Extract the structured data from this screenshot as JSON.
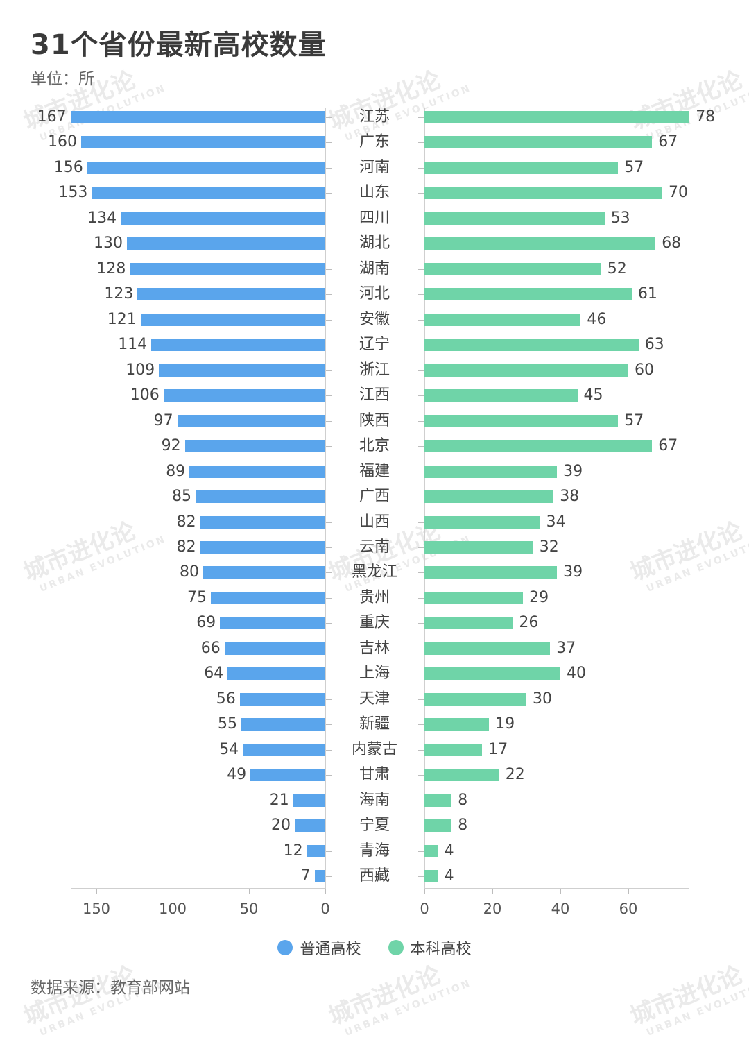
{
  "header": {
    "title": "31个省份最新高校数量",
    "unit": "单位：所"
  },
  "footer": {
    "source": "数据来源：教育部网站"
  },
  "watermark": {
    "text": "城市进化论",
    "subtext": "URBAN EVOLUTION"
  },
  "legend": [
    {
      "label": "普通高校",
      "color": "#5aa5ec"
    },
    {
      "label": "本科高校",
      "color": "#6fd4a8"
    }
  ],
  "chart_data": {
    "type": "bar",
    "orientation": "horizontal-butterfly",
    "title": "31个省份最新高校数量",
    "subtitle": "单位：所",
    "source": "数据来源：教育部网站",
    "categories": [
      "江苏",
      "广东",
      "河南",
      "山东",
      "四川",
      "湖北",
      "湖南",
      "河北",
      "安徽",
      "辽宁",
      "浙江",
      "江西",
      "陕西",
      "北京",
      "福建",
      "广西",
      "山西",
      "云南",
      "黑龙江",
      "贵州",
      "重庆",
      "吉林",
      "上海",
      "天津",
      "新疆",
      "内蒙古",
      "甘肃",
      "海南",
      "宁夏",
      "青海",
      "西藏"
    ],
    "series": [
      {
        "name": "普通高校",
        "color": "#5aa5ec",
        "side": "left",
        "values": [
          167,
          160,
          156,
          153,
          134,
          130,
          128,
          123,
          121,
          114,
          109,
          106,
          97,
          92,
          89,
          85,
          82,
          82,
          80,
          75,
          69,
          66,
          64,
          56,
          55,
          54,
          49,
          21,
          20,
          12,
          7
        ]
      },
      {
        "name": "本科高校",
        "color": "#6fd4a8",
        "side": "right",
        "values": [
          78,
          67,
          57,
          70,
          53,
          68,
          52,
          61,
          46,
          63,
          60,
          45,
          57,
          67,
          39,
          38,
          34,
          32,
          39,
          29,
          26,
          37,
          40,
          30,
          19,
          17,
          22,
          8,
          8,
          4,
          4
        ]
      }
    ],
    "left_axis": {
      "ticks": [
        "150",
        "100",
        "50",
        "0"
      ],
      "range": [
        0,
        167
      ],
      "reversed": true
    },
    "right_axis": {
      "ticks": [
        "0",
        "20",
        "40",
        "60"
      ],
      "range": [
        0,
        78
      ]
    },
    "grid": false,
    "legend_position": "bottom"
  }
}
